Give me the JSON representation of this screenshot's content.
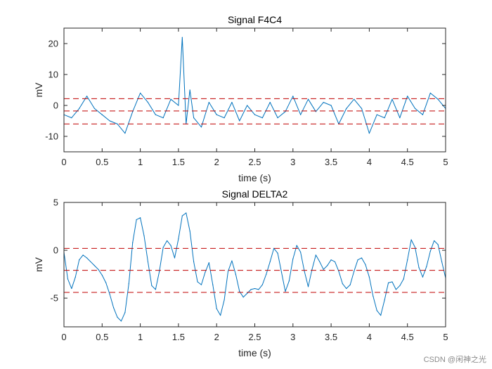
{
  "chart_data": [
    {
      "type": "line",
      "title": "Signal F4C4",
      "xlabel": "time (s)",
      "ylabel": "mV",
      "xlim": [
        0,
        5
      ],
      "ylim": [
        -15,
        25
      ],
      "xticks": [
        0,
        0.5,
        1,
        1.5,
        2,
        2.5,
        3,
        3.5,
        4,
        4.5,
        5
      ],
      "xtick_labels": [
        "0",
        "0.5",
        "1",
        "1.5",
        "2",
        "2.5",
        "3",
        "3.5",
        "4",
        "4.5",
        "5"
      ],
      "yticks": [
        -10,
        0,
        10,
        20
      ],
      "ytick_labels": [
        "-10",
        "0",
        "10",
        "20"
      ],
      "series_color": "#0072BD",
      "reference_lines": [
        {
          "name": "upper",
          "y": 2.2,
          "color": "#C00000",
          "style": "dashed"
        },
        {
          "name": "mean",
          "y": -1.8,
          "color": "#C00000",
          "style": "dashed"
        },
        {
          "name": "lower",
          "y": -6.0,
          "color": "#C00000",
          "style": "dashed"
        }
      ],
      "x": [
        0,
        0.1,
        0.2,
        0.3,
        0.4,
        0.5,
        0.6,
        0.7,
        0.8,
        0.9,
        1.0,
        1.1,
        1.2,
        1.3,
        1.4,
        1.5,
        1.55,
        1.6,
        1.65,
        1.7,
        1.8,
        1.9,
        2.0,
        2.1,
        2.2,
        2.3,
        2.4,
        2.5,
        2.6,
        2.7,
        2.8,
        2.9,
        3.0,
        3.1,
        3.2,
        3.3,
        3.4,
        3.5,
        3.6,
        3.7,
        3.8,
        3.9,
        4.0,
        4.1,
        4.2,
        4.3,
        4.4,
        4.5,
        4.6,
        4.7,
        4.8,
        4.9,
        5.0
      ],
      "values": [
        -3,
        -4,
        -1,
        3,
        -1,
        -3,
        -5,
        -6,
        -9,
        -2,
        4,
        1,
        -3,
        -4,
        2,
        0,
        22,
        -6,
        5,
        -4,
        -7,
        1,
        -3,
        -4,
        1,
        -5,
        0,
        -3,
        -4,
        1,
        -4,
        -2,
        3,
        -3,
        2,
        -2,
        1,
        0,
        -6,
        -1,
        2,
        -1,
        -9,
        -3,
        -4,
        2,
        -4,
        3,
        -1,
        -3,
        4,
        2,
        -1
      ]
    },
    {
      "type": "line",
      "title": "Signal DELTA2",
      "xlabel": "time (s)",
      "ylabel": "mV",
      "xlim": [
        0,
        5
      ],
      "ylim": [
        -8,
        5
      ],
      "xticks": [
        0,
        0.5,
        1,
        1.5,
        2,
        2.5,
        3,
        3.5,
        4,
        4.5,
        5
      ],
      "xtick_labels": [
        "0",
        "0.5",
        "1",
        "1.5",
        "2",
        "2.5",
        "3",
        "3.5",
        "4",
        "4.5",
        "5"
      ],
      "yticks": [
        -5,
        0,
        5
      ],
      "ytick_labels": [
        "-5",
        "0",
        "5"
      ],
      "series_color": "#0072BD",
      "reference_lines": [
        {
          "name": "upper",
          "y": 0.2,
          "color": "#C00000",
          "style": "dashed"
        },
        {
          "name": "mean",
          "y": -2.1,
          "color": "#C00000",
          "style": "dashed"
        },
        {
          "name": "lower",
          "y": -4.4,
          "color": "#C00000",
          "style": "dashed"
        }
      ],
      "x": [
        0,
        0.05,
        0.1,
        0.15,
        0.2,
        0.25,
        0.3,
        0.35,
        0.4,
        0.45,
        0.5,
        0.55,
        0.6,
        0.65,
        0.7,
        0.75,
        0.8,
        0.85,
        0.9,
        0.95,
        1.0,
        1.05,
        1.1,
        1.15,
        1.2,
        1.25,
        1.3,
        1.35,
        1.4,
        1.45,
        1.5,
        1.55,
        1.6,
        1.65,
        1.7,
        1.75,
        1.8,
        1.85,
        1.9,
        1.95,
        2.0,
        2.05,
        2.1,
        2.15,
        2.2,
        2.25,
        2.3,
        2.35,
        2.4,
        2.45,
        2.5,
        2.55,
        2.6,
        2.65,
        2.7,
        2.75,
        2.8,
        2.85,
        2.9,
        2.95,
        3.0,
        3.05,
        3.1,
        3.15,
        3.2,
        3.25,
        3.3,
        3.35,
        3.4,
        3.45,
        3.5,
        3.55,
        3.6,
        3.65,
        3.7,
        3.75,
        3.8,
        3.85,
        3.9,
        3.95,
        4.0,
        4.05,
        4.1,
        4.15,
        4.2,
        4.25,
        4.3,
        4.35,
        4.4,
        4.45,
        4.5,
        4.55,
        4.6,
        4.65,
        4.7,
        4.75,
        4.8,
        4.85,
        4.9,
        4.95,
        5.0
      ],
      "values": [
        -0.2,
        -3.0,
        -4.0,
        -2.8,
        -1.0,
        -0.5,
        -0.8,
        -1.2,
        -1.6,
        -2.0,
        -2.6,
        -3.4,
        -4.6,
        -6.0,
        -7.0,
        -7.4,
        -6.5,
        -3.5,
        0.8,
        3.2,
        3.4,
        1.5,
        -1.2,
        -3.7,
        -4.1,
        -2.2,
        0.3,
        1.0,
        0.5,
        -0.8,
        1.2,
        3.6,
        3.9,
        2.0,
        -1.2,
        -3.3,
        -3.6,
        -2.3,
        -1.3,
        -3.6,
        -6.1,
        -6.8,
        -5.2,
        -2.2,
        -1.1,
        -2.5,
        -4.3,
        -4.9,
        -4.5,
        -4.1,
        -4.0,
        -4.1,
        -3.6,
        -2.5,
        -1.2,
        0.2,
        -0.3,
        -2.3,
        -4.3,
        -3.2,
        -0.9,
        0.5,
        -0.2,
        -2.2,
        -3.8,
        -2.0,
        -0.5,
        -1.2,
        -2.0,
        -1.6,
        -1.0,
        -1.2,
        -2.2,
        -3.5,
        -4.0,
        -3.6,
        -2.2,
        -1.0,
        -0.8,
        -1.5,
        -2.8,
        -4.8,
        -6.3,
        -6.8,
        -5.2,
        -3.4,
        -3.3,
        -4.1,
        -3.7,
        -3.0,
        -1.0,
        1.1,
        0.3,
        -1.8,
        -2.8,
        -1.7,
        -0.1,
        1.0,
        0.6,
        -1.2,
        -2.9
      ]
    }
  ],
  "watermark": "CSDN @闲神之光"
}
